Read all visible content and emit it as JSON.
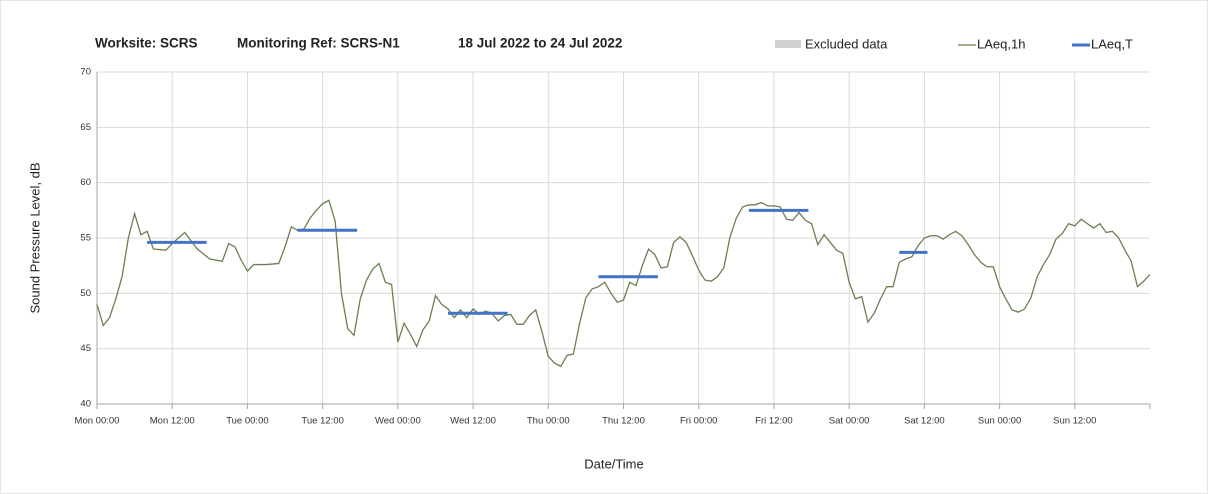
{
  "chart_data": {
    "type": "line",
    "title": {
      "worksite": "Worksite: SCRS",
      "monitoring_ref": "Monitoring Ref: SCRS-N1",
      "period": "18 Jul 2022 to 24 Jul 2022"
    },
    "xlabel": "Date/Time",
    "ylabel": "Sound Pressure Level, dB",
    "xlim": [
      0,
      168
    ],
    "ylim": [
      40,
      70
    ],
    "yticks": [
      40,
      45,
      50,
      55,
      60,
      65,
      70
    ],
    "xticks": [
      {
        "value": 0,
        "label": "Mon 00:00"
      },
      {
        "value": 12,
        "label": "Mon 12:00"
      },
      {
        "value": 24,
        "label": "Tue 00:00"
      },
      {
        "value": 36,
        "label": "Tue 12:00"
      },
      {
        "value": 48,
        "label": "Wed 00:00"
      },
      {
        "value": 60,
        "label": "Wed 12:00"
      },
      {
        "value": 72,
        "label": "Thu 00:00"
      },
      {
        "value": 84,
        "label": "Thu 12:00"
      },
      {
        "value": 96,
        "label": "Fri 00:00"
      },
      {
        "value": 108,
        "label": "Fri 12:00"
      },
      {
        "value": 120,
        "label": "Sat 00:00"
      },
      {
        "value": 132,
        "label": "Sat 12:00"
      },
      {
        "value": 144,
        "label": "Sun 00:00"
      },
      {
        "value": 156,
        "label": "Sun 12:00"
      }
    ],
    "grid": true,
    "excluded": {
      "name": "Excluded data",
      "color": "#d0d0d0"
    },
    "series": [
      {
        "name": "LAeq,1h",
        "color": "#6b7f52",
        "x": [
          0,
          1,
          2,
          3,
          4,
          5,
          6,
          7,
          8,
          9,
          11,
          12,
          14,
          16,
          18,
          20,
          21,
          22,
          23,
          24,
          25,
          27,
          29,
          30,
          31,
          32,
          33,
          34,
          35,
          36,
          37,
          38,
          39,
          40,
          41,
          42,
          43,
          44,
          45,
          46,
          47,
          48,
          49,
          50,
          51,
          52,
          53,
          54,
          55,
          56,
          57,
          58,
          59,
          60,
          61,
          62,
          63,
          64,
          65,
          66,
          67,
          68,
          69,
          70,
          71,
          72,
          73,
          74,
          75,
          76,
          77,
          78,
          79,
          80,
          81,
          82,
          83,
          84,
          85,
          86,
          87,
          88,
          89,
          90,
          91,
          92,
          93,
          94,
          95,
          96,
          97,
          98,
          99,
          100,
          101,
          102,
          103,
          104,
          105,
          106,
          107,
          108,
          109,
          110,
          111,
          112,
          113,
          114,
          115,
          116,
          117,
          118,
          119,
          120,
          121,
          122,
          123,
          124,
          125,
          126,
          127,
          128,
          129,
          130,
          131,
          132,
          133,
          134,
          135,
          136,
          137,
          138,
          139,
          140,
          141,
          142,
          143,
          144,
          145,
          146,
          147,
          148,
          149,
          150,
          151,
          152,
          153,
          154,
          155,
          156,
          157,
          158,
          159,
          160,
          161,
          162,
          163,
          164,
          165,
          166,
          167,
          168
        ],
        "values": [
          49,
          47.1,
          47.8,
          49.5,
          51.5,
          55,
          57.2,
          55.3,
          55.6,
          54,
          53.9,
          54.5,
          55.5,
          54,
          53.1,
          52.9,
          54.5,
          54.2,
          53,
          52,
          52.6,
          52.6,
          52.7,
          54.2,
          56,
          55.7,
          55.8,
          56.8,
          57.5,
          58.1,
          58.4,
          56.5,
          50,
          46.8,
          46.2,
          49.5,
          51.2,
          52.2,
          52.7,
          51,
          50.8,
          45.6,
          47.3,
          46.3,
          45.2,
          46.7,
          47.5,
          49.8,
          49,
          48.6,
          47.8,
          48.5,
          47.8,
          48.6,
          48.1,
          48.4,
          48.2,
          47.5,
          48,
          48.1,
          47.2,
          47.2,
          48,
          48.5,
          46.5,
          44.3,
          43.7,
          43.4,
          44.4,
          44.5,
          47.3,
          49.6,
          50.4,
          50.6,
          51,
          50,
          49.2,
          49.4,
          51,
          50.7,
          52.5,
          54,
          53.5,
          52.3,
          52.4,
          54.6,
          55.1,
          54.6,
          53.4,
          52.1,
          51.2,
          51.1,
          51.5,
          52.3,
          55.1,
          56.8,
          57.8,
          58,
          58,
          58.2,
          57.9,
          57.9,
          57.8,
          56.7,
          56.6,
          57.3,
          56.6,
          56.3,
          54.4,
          55.3,
          54.6,
          53.9,
          53.6,
          51,
          49.5,
          49.7,
          47.4,
          48.2,
          49.5,
          50.6,
          50.6,
          52.8,
          53.1,
          53.3,
          54.3,
          55,
          55.2,
          55.2,
          54.9,
          55.3,
          55.6,
          55.2,
          54.4,
          53.5,
          52.8,
          52.4,
          52.4,
          50.6,
          49.5,
          48.5,
          48.3,
          48.6,
          49.6,
          51.5,
          52.6,
          53.5,
          54.9,
          55.4,
          56.3,
          56.1,
          56.7,
          56.3,
          55.9,
          56.3,
          55.5,
          55.6,
          55,
          53.9,
          52.9,
          50.6,
          51.1,
          51.7
        ]
      },
      {
        "name": "LAeq,T",
        "color": "#4472c4",
        "segments": [
          {
            "x": [
              8,
              17.5
            ],
            "value": 54.6
          },
          {
            "x": [
              32,
              41.5
            ],
            "value": 55.7
          },
          {
            "x": [
              56,
              65.5
            ],
            "value": 48.2
          },
          {
            "x": [
              80,
              89.5
            ],
            "value": 51.5
          },
          {
            "x": [
              104,
              113.5
            ],
            "value": 57.5
          },
          {
            "x": [
              128,
              132.5
            ],
            "value": 53.7
          }
        ]
      }
    ]
  }
}
